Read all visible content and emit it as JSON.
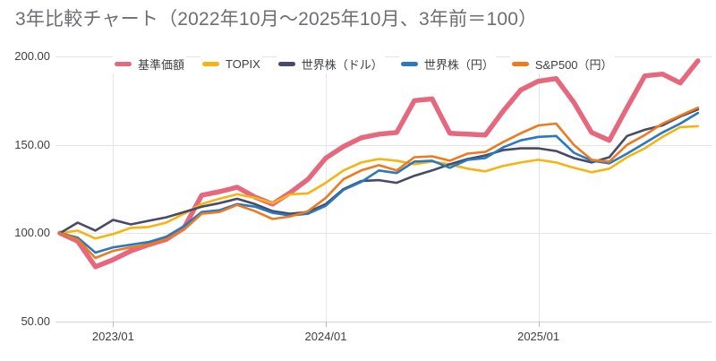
{
  "title": "3年比較チャート（2022年10月〜2025年10月、3年前＝100）",
  "legend": {
    "items": [
      {
        "label": "基準価額",
        "color": "#e5687e"
      },
      {
        "label": "TOPIX",
        "color": "#f6b411"
      },
      {
        "label": "世界株（ドル）",
        "color": "#474a68"
      },
      {
        "label": "世界株（円）",
        "color": "#2879bf"
      },
      {
        "label": "S&P500（円）",
        "color": "#ef7a1e"
      }
    ]
  },
  "axes": {
    "y_ticks": [
      {
        "value": 200,
        "label": "200.00"
      },
      {
        "value": 150,
        "label": "150.00"
      },
      {
        "value": 100,
        "label": "100.00"
      },
      {
        "value": 50,
        "label": "50.00"
      }
    ],
    "x_ticks": [
      {
        "index": 3,
        "label": "2023/01"
      },
      {
        "index": 15,
        "label": "2024/01"
      },
      {
        "index": 27,
        "label": "2025/01"
      }
    ]
  },
  "chart_data": {
    "type": "line",
    "title": "3年比較チャート（2022年10月〜2025年10月、3年前＝100）",
    "xlabel": "",
    "ylabel": "",
    "ylim": [
      50,
      200
    ],
    "grid": true,
    "legend_position": "top",
    "x": [
      "2022/10",
      "2022/11",
      "2022/12",
      "2023/01",
      "2023/02",
      "2023/03",
      "2023/04",
      "2023/05",
      "2023/06",
      "2023/07",
      "2023/08",
      "2023/09",
      "2023/10",
      "2023/11",
      "2023/12",
      "2024/01",
      "2024/02",
      "2024/03",
      "2024/04",
      "2024/05",
      "2024/06",
      "2024/07",
      "2024/08",
      "2024/09",
      "2024/10",
      "2024/11",
      "2024/12",
      "2025/01",
      "2025/02",
      "2025/03",
      "2025/04",
      "2025/05",
      "2025/06",
      "2025/07",
      "2025/08",
      "2025/09",
      "2025/10"
    ],
    "series": [
      {
        "name": "基準価額",
        "color": "#e5687e",
        "width": 5.5,
        "values": [
          100,
          95.5,
          81,
          85,
          90,
          93.5,
          96.5,
          103,
          121.5,
          123.5,
          126,
          120.5,
          116.5,
          123,
          130.5,
          142.5,
          149,
          154,
          156,
          157,
          175,
          176,
          156.5,
          156,
          155.5,
          169,
          181,
          186,
          187.5,
          174,
          157,
          152.5,
          171,
          189,
          190,
          185,
          197.5
        ]
      },
      {
        "name": "TOPIX",
        "color": "#f6b411",
        "width": 2.6,
        "values": [
          100,
          101.5,
          97,
          99.5,
          103,
          103.5,
          106,
          111,
          116.5,
          119.5,
          122,
          120,
          117,
          122,
          122.5,
          128.5,
          135.5,
          140,
          142,
          141,
          139,
          140.5,
          139,
          136.5,
          135,
          138,
          140,
          141.5,
          140,
          137,
          134.5,
          136.5,
          143,
          148,
          154.5,
          160,
          160.5
        ]
      },
      {
        "name": "世界株（ドル）",
        "color": "#474a68",
        "width": 2.6,
        "values": [
          100,
          106,
          101.5,
          107.5,
          105,
          107,
          109,
          112,
          115,
          117,
          119.5,
          116.5,
          112.5,
          111,
          112,
          116.5,
          125,
          129.5,
          130,
          128.5,
          132.5,
          135.5,
          139,
          142,
          144,
          147,
          148,
          148,
          146.5,
          142.5,
          140,
          143,
          155,
          158.5,
          161,
          166,
          170
        ]
      },
      {
        "name": "世界株（円）",
        "color": "#2879bf",
        "width": 2.6,
        "values": [
          100,
          97.5,
          89,
          92,
          93.5,
          95,
          98,
          104,
          112,
          113,
          116.5,
          115,
          111.5,
          110,
          111,
          115.5,
          124.5,
          129,
          135.5,
          134,
          140.5,
          141,
          137,
          141.5,
          142.5,
          148.5,
          152.5,
          154.5,
          155,
          145.5,
          141,
          139.5,
          145,
          151,
          157,
          162,
          168
        ]
      },
      {
        "name": "S&P500（円）",
        "color": "#ef7a1e",
        "width": 2.6,
        "values": [
          100,
          96.5,
          86,
          90,
          92,
          93.5,
          96.5,
          102,
          111,
          112,
          116,
          112.5,
          108,
          109.5,
          112.5,
          120,
          130.5,
          135.5,
          138.5,
          135.5,
          143,
          143.5,
          141,
          145,
          146,
          151.5,
          156.5,
          161,
          162,
          150,
          141.5,
          140.5,
          150,
          155.5,
          162,
          166.5,
          171
        ]
      }
    ]
  }
}
